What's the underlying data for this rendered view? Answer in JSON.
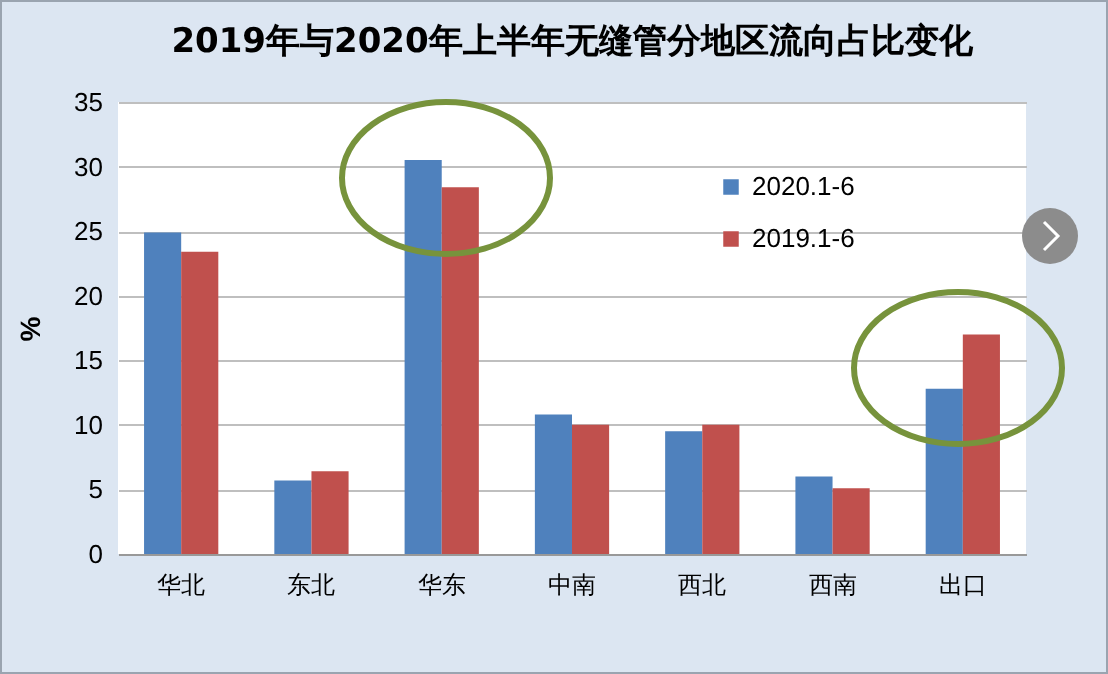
{
  "chart_data": {
    "type": "bar",
    "title": "2019年与2020年上半年无缝管分地区流向占比变化",
    "ylabel": "%",
    "categories": [
      "华北",
      "东北",
      "华东",
      "中南",
      "西北",
      "西南",
      "出口"
    ],
    "series": [
      {
        "name": "2020.1-6",
        "color": "#4f81bd",
        "values": [
          24.9,
          5.7,
          30.5,
          10.8,
          9.5,
          6.0,
          12.8
        ]
      },
      {
        "name": "2019.1-6",
        "color": "#c0504d",
        "values": [
          23.4,
          6.4,
          28.4,
          10.0,
          10.0,
          5.1,
          17.0
        ]
      }
    ],
    "ylim": [
      0,
      35
    ],
    "yticks": [
      0,
      5,
      10,
      15,
      20,
      25,
      30,
      35
    ],
    "grid": "y",
    "legend": "top right"
  }
}
